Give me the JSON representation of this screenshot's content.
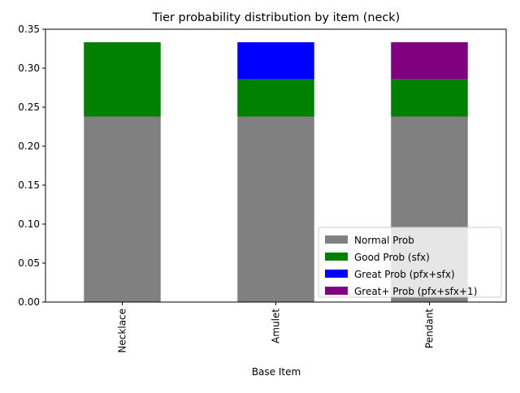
{
  "chart_data": {
    "type": "bar",
    "stacked": true,
    "title": "Tier probability distribution by item (neck)",
    "xlabel": "Base Item",
    "ylabel": "",
    "categories": [
      "Necklace",
      "Amulet",
      "Pendant"
    ],
    "ylim": [
      0,
      0.35
    ],
    "yticks": [
      "0.00",
      "0.05",
      "0.10",
      "0.15",
      "0.20",
      "0.25",
      "0.30",
      "0.35"
    ],
    "grid": false,
    "legend_position": "lower-right",
    "series": [
      {
        "name": "Normal Prob",
        "color": "#808080",
        "values": [
          0.238,
          0.238,
          0.238
        ]
      },
      {
        "name": "Good Prob (sfx)",
        "color": "#008000",
        "values": [
          0.0953,
          0.0477,
          0.0477
        ]
      },
      {
        "name": "Great Prob (pfx+sfx)",
        "color": "#0000ff",
        "values": [
          0,
          0.0476,
          0
        ]
      },
      {
        "name": "Great+ Prob (pfx+sfx+1)",
        "color": "#800080",
        "values": [
          0,
          0,
          0.0476
        ]
      }
    ]
  }
}
